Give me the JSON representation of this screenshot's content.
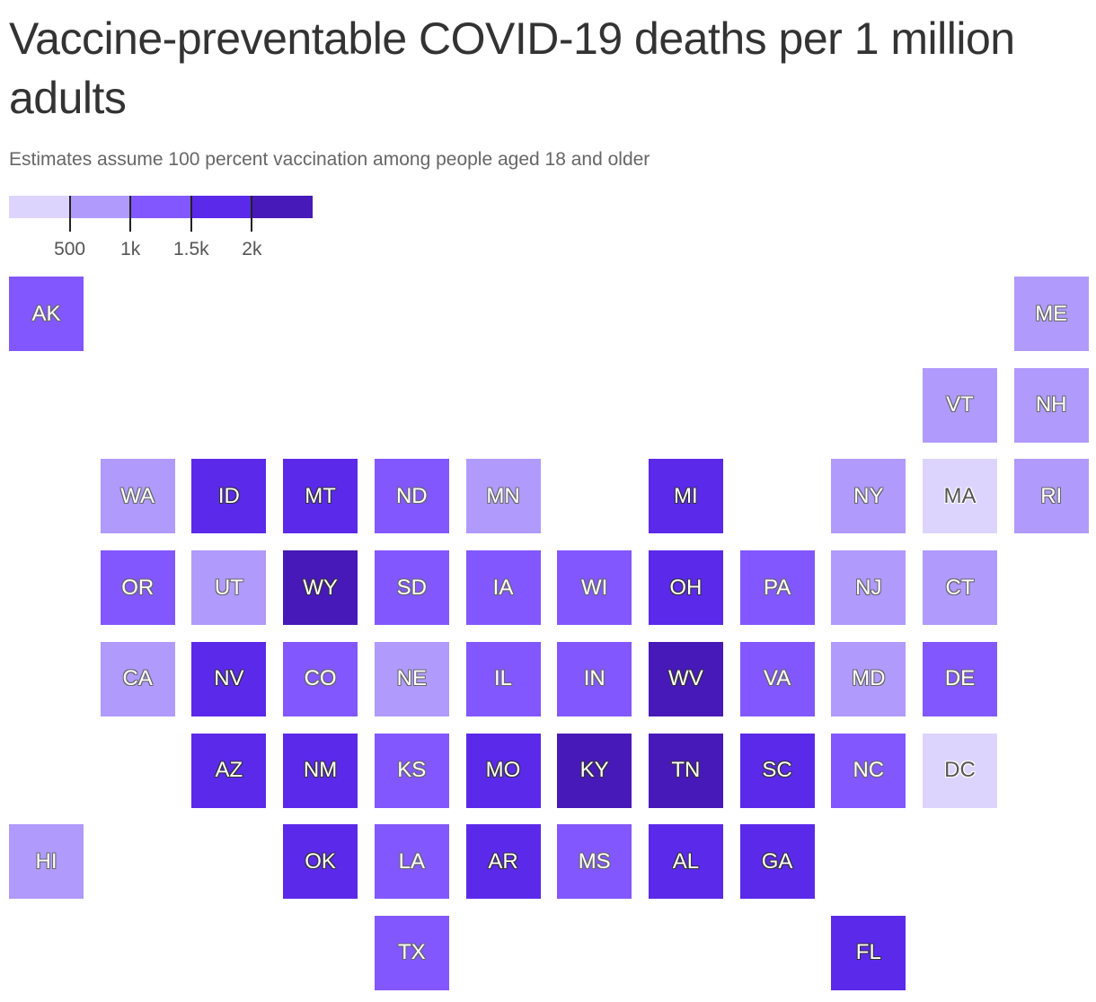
{
  "title": "Vaccine-preventable COVID-19 deaths per 1 million adults",
  "subtitle": "Estimates assume 100 percent vaccination among people aged 18 and older",
  "legend": {
    "colors": [
      "#ddd4fd",
      "#b09afc",
      "#8257fd",
      "#5b29ea",
      "#4719b8"
    ],
    "breaks": [
      "500",
      "1k",
      "1.5k",
      "2k"
    ]
  },
  "states": [
    {
      "abbr": "AK",
      "bin": 2,
      "col": 0,
      "row": 0
    },
    {
      "abbr": "ME",
      "bin": 1,
      "col": 11,
      "row": 0
    },
    {
      "abbr": "VT",
      "bin": 1,
      "col": 10,
      "row": 1
    },
    {
      "abbr": "NH",
      "bin": 1,
      "col": 11,
      "row": 1
    },
    {
      "abbr": "WA",
      "bin": 1,
      "col": 1,
      "row": 2
    },
    {
      "abbr": "ID",
      "bin": 3,
      "col": 2,
      "row": 2
    },
    {
      "abbr": "MT",
      "bin": 3,
      "col": 3,
      "row": 2
    },
    {
      "abbr": "ND",
      "bin": 2,
      "col": 4,
      "row": 2
    },
    {
      "abbr": "MN",
      "bin": 1,
      "col": 5,
      "row": 2
    },
    {
      "abbr": "MI",
      "bin": 3,
      "col": 7,
      "row": 2
    },
    {
      "abbr": "NY",
      "bin": 1,
      "col": 9,
      "row": 2
    },
    {
      "abbr": "MA",
      "bin": 0,
      "col": 10,
      "row": 2
    },
    {
      "abbr": "RI",
      "bin": 1,
      "col": 11,
      "row": 2
    },
    {
      "abbr": "OR",
      "bin": 2,
      "col": 1,
      "row": 3
    },
    {
      "abbr": "UT",
      "bin": 1,
      "col": 2,
      "row": 3
    },
    {
      "abbr": "WY",
      "bin": 4,
      "col": 3,
      "row": 3
    },
    {
      "abbr": "SD",
      "bin": 2,
      "col": 4,
      "row": 3
    },
    {
      "abbr": "IA",
      "bin": 2,
      "col": 5,
      "row": 3
    },
    {
      "abbr": "WI",
      "bin": 2,
      "col": 6,
      "row": 3
    },
    {
      "abbr": "OH",
      "bin": 3,
      "col": 7,
      "row": 3
    },
    {
      "abbr": "PA",
      "bin": 2,
      "col": 8,
      "row": 3
    },
    {
      "abbr": "NJ",
      "bin": 1,
      "col": 9,
      "row": 3
    },
    {
      "abbr": "CT",
      "bin": 1,
      "col": 10,
      "row": 3
    },
    {
      "abbr": "CA",
      "bin": 1,
      "col": 1,
      "row": 4
    },
    {
      "abbr": "NV",
      "bin": 3,
      "col": 2,
      "row": 4
    },
    {
      "abbr": "CO",
      "bin": 2,
      "col": 3,
      "row": 4
    },
    {
      "abbr": "NE",
      "bin": 1,
      "col": 4,
      "row": 4
    },
    {
      "abbr": "IL",
      "bin": 2,
      "col": 5,
      "row": 4
    },
    {
      "abbr": "IN",
      "bin": 2,
      "col": 6,
      "row": 4
    },
    {
      "abbr": "WV",
      "bin": 4,
      "col": 7,
      "row": 4
    },
    {
      "abbr": "VA",
      "bin": 2,
      "col": 8,
      "row": 4
    },
    {
      "abbr": "MD",
      "bin": 1,
      "col": 9,
      "row": 4
    },
    {
      "abbr": "DE",
      "bin": 2,
      "col": 10,
      "row": 4
    },
    {
      "abbr": "AZ",
      "bin": 3,
      "col": 2,
      "row": 5
    },
    {
      "abbr": "NM",
      "bin": 3,
      "col": 3,
      "row": 5
    },
    {
      "abbr": "KS",
      "bin": 2,
      "col": 4,
      "row": 5
    },
    {
      "abbr": "MO",
      "bin": 3,
      "col": 5,
      "row": 5
    },
    {
      "abbr": "KY",
      "bin": 4,
      "col": 6,
      "row": 5
    },
    {
      "abbr": "TN",
      "bin": 4,
      "col": 7,
      "row": 5
    },
    {
      "abbr": "SC",
      "bin": 3,
      "col": 8,
      "row": 5
    },
    {
      "abbr": "NC",
      "bin": 2,
      "col": 9,
      "row": 5
    },
    {
      "abbr": "DC",
      "bin": 0,
      "col": 10,
      "row": 5
    },
    {
      "abbr": "HI",
      "bin": 1,
      "col": 0,
      "row": 6
    },
    {
      "abbr": "OK",
      "bin": 3,
      "col": 3,
      "row": 6
    },
    {
      "abbr": "LA",
      "bin": 2,
      "col": 4,
      "row": 6
    },
    {
      "abbr": "AR",
      "bin": 3,
      "col": 5,
      "row": 6
    },
    {
      "abbr": "MS",
      "bin": 2,
      "col": 6,
      "row": 6
    },
    {
      "abbr": "AL",
      "bin": 3,
      "col": 7,
      "row": 6
    },
    {
      "abbr": "GA",
      "bin": 3,
      "col": 8,
      "row": 6
    },
    {
      "abbr": "TX",
      "bin": 2,
      "col": 4,
      "row": 7
    },
    {
      "abbr": "FL",
      "bin": 3,
      "col": 9,
      "row": 7
    }
  ]
}
